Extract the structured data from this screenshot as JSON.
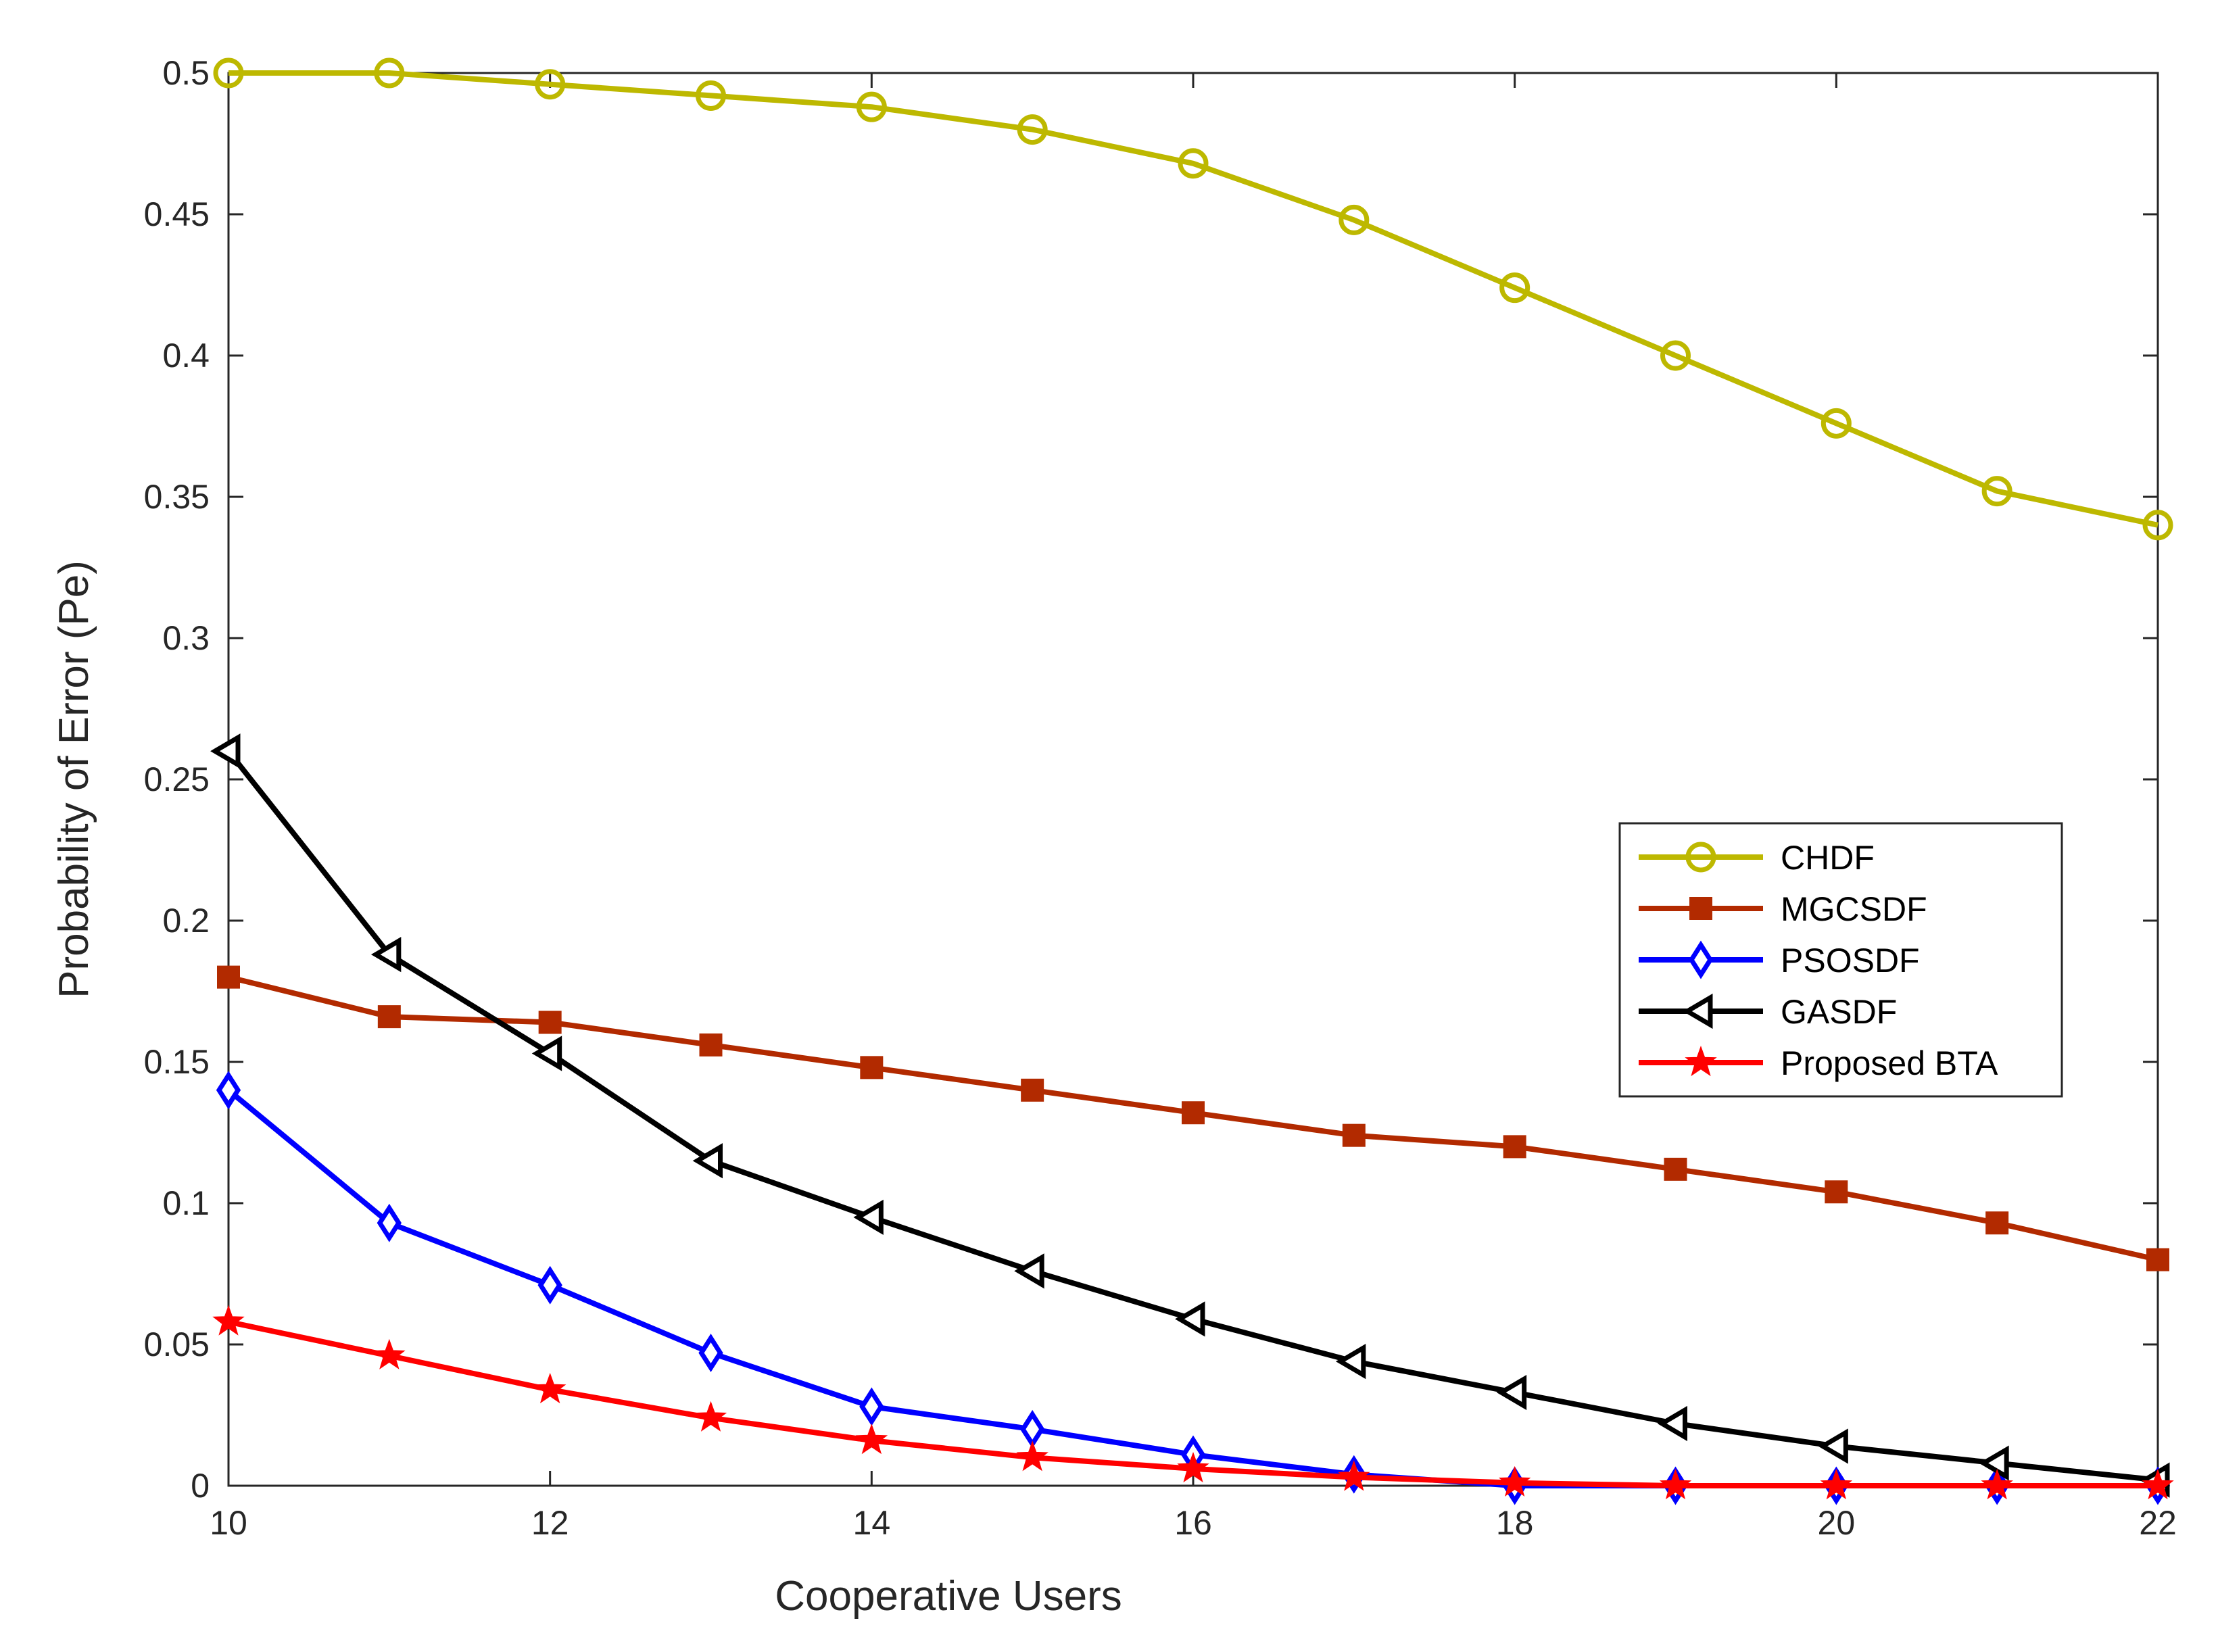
{
  "chart_data": {
    "type": "line",
    "title": "",
    "xlabel": "Cooperative Users",
    "ylabel": "Probability of Error (Pe)",
    "xlim": [
      10,
      22
    ],
    "ylim": [
      0,
      0.5
    ],
    "xticks": [
      10,
      12,
      14,
      16,
      18,
      20,
      22
    ],
    "yticks": [
      0,
      0.05,
      0.1,
      0.15,
      0.2,
      0.25,
      0.3,
      0.35,
      0.4,
      0.45,
      0.5
    ],
    "xtick_labels": [
      "10",
      "12",
      "14",
      "16",
      "18",
      "20",
      "22"
    ],
    "ytick_labels": [
      "0",
      "0.05",
      "0.1",
      "0.15",
      "0.2",
      "0.25",
      "0.3",
      "0.35",
      "0.4",
      "0.45",
      "0.5"
    ],
    "grid": false,
    "legend_position": "center-right",
    "x": [
      10,
      11,
      12,
      13,
      14,
      15,
      16,
      17,
      18,
      19,
      20,
      21,
      22
    ],
    "series": [
      {
        "name": "CHDF",
        "color": "#bdb800",
        "marker": "circle",
        "values": [
          0.5,
          0.5,
          0.496,
          0.492,
          0.488,
          0.48,
          0.468,
          0.448,
          0.424,
          0.4,
          0.376,
          0.352,
          0.34
        ]
      },
      {
        "name": "MGCSDF",
        "color": "#b22a00",
        "marker": "square",
        "values": [
          0.18,
          0.166,
          0.164,
          0.156,
          0.148,
          0.14,
          0.132,
          0.124,
          0.12,
          0.112,
          0.104,
          0.093,
          0.08
        ]
      },
      {
        "name": "PSOSDF",
        "color": "#0000ff",
        "marker": "diamond",
        "values": [
          0.14,
          0.093,
          0.071,
          0.047,
          0.028,
          0.02,
          0.011,
          0.004,
          0.0,
          0.0,
          0.0,
          0.0,
          0.0
        ]
      },
      {
        "name": "GASDF",
        "color": "#000000",
        "marker": "triangle-left",
        "values": [
          0.26,
          0.188,
          0.153,
          0.115,
          0.095,
          0.076,
          0.059,
          0.044,
          0.033,
          0.022,
          0.014,
          0.008,
          0.002
        ]
      },
      {
        "name": "Proposed BTA",
        "color": "#ff0000",
        "marker": "star",
        "values": [
          0.058,
          0.046,
          0.034,
          0.024,
          0.016,
          0.01,
          0.006,
          0.003,
          0.001,
          0.0,
          0.0,
          0.0,
          0.0
        ]
      }
    ]
  }
}
